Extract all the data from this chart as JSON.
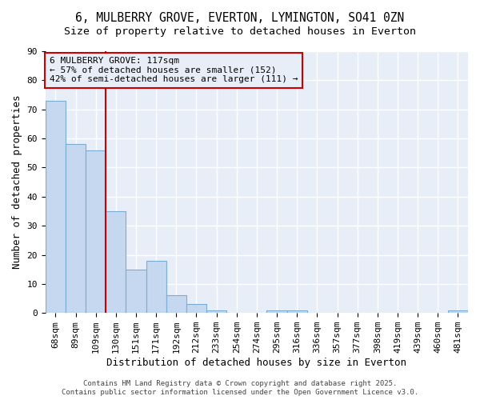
{
  "title": "6, MULBERRY GROVE, EVERTON, LYMINGTON, SO41 0ZN",
  "subtitle": "Size of property relative to detached houses in Everton",
  "xlabel": "Distribution of detached houses by size in Everton",
  "ylabel": "Number of detached properties",
  "bar_labels": [
    "68sqm",
    "89sqm",
    "109sqm",
    "130sqm",
    "151sqm",
    "171sqm",
    "192sqm",
    "212sqm",
    "233sqm",
    "254sqm",
    "274sqm",
    "295sqm",
    "316sqm",
    "336sqm",
    "357sqm",
    "377sqm",
    "398sqm",
    "419sqm",
    "439sqm",
    "460sqm",
    "481sqm"
  ],
  "bar_values": [
    73,
    58,
    56,
    35,
    15,
    18,
    6,
    3,
    1,
    0,
    0,
    1,
    1,
    0,
    0,
    0,
    0,
    0,
    0,
    0,
    1
  ],
  "bar_color": "#c5d8f0",
  "bar_edge_color": "#7aadd4",
  "vline_color": "#cc0000",
  "annotation_text": "6 MULBERRY GROVE: 117sqm\n← 57% of detached houses are smaller (152)\n42% of semi-detached houses are larger (111) →",
  "ylim": [
    0,
    90
  ],
  "yticks": [
    0,
    10,
    20,
    30,
    40,
    50,
    60,
    70,
    80,
    90
  ],
  "footer1": "Contains HM Land Registry data © Crown copyright and database right 2025.",
  "footer2": "Contains public sector information licensed under the Open Government Licence v3.0.",
  "bg_color": "#e8eef8",
  "plot_bg_color": "#dce8f5",
  "title_fontsize": 10.5,
  "subtitle_fontsize": 9.5,
  "axis_label_fontsize": 9,
  "tick_fontsize": 8,
  "annotation_fontsize": 8,
  "footer_fontsize": 6.5
}
